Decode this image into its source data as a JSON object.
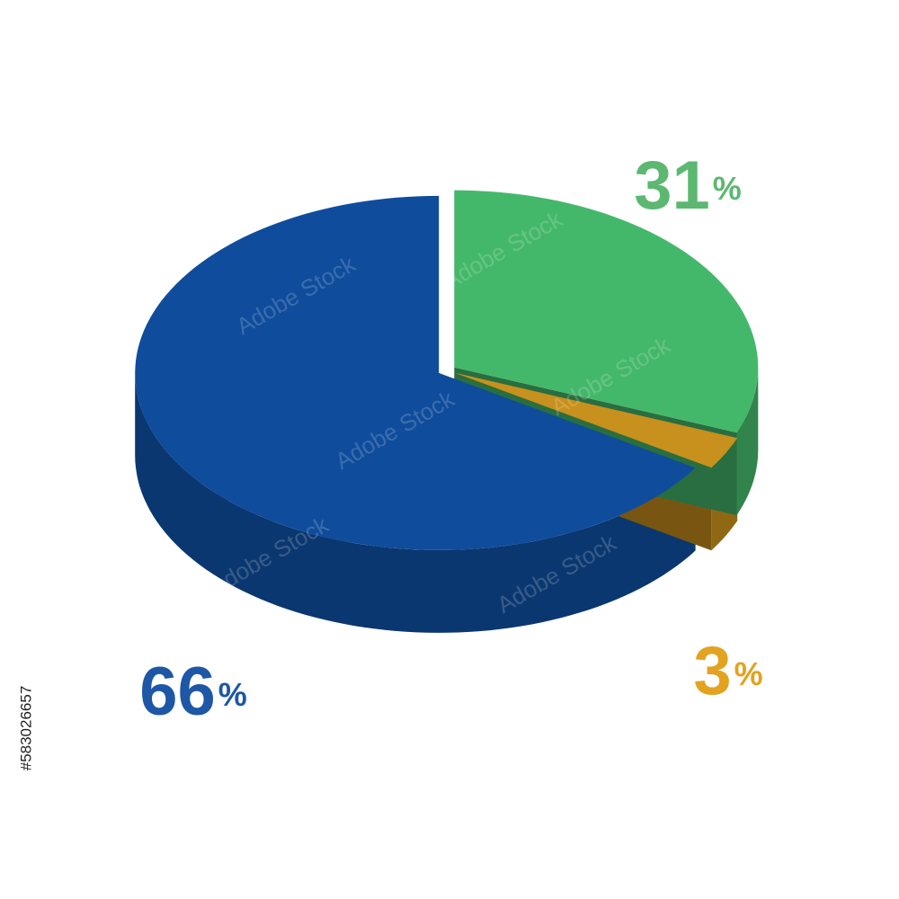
{
  "chart_data": {
    "type": "pie3d",
    "values": [
      66,
      3,
      31
    ],
    "colors": [
      "#0f4c9c",
      "#c8901c",
      "#44b86a"
    ],
    "label_colors": [
      "#1d57a6",
      "#e3a21f",
      "#5cb870"
    ],
    "unit": "%",
    "watermark": "Adobe Stock",
    "stock_id": "#583026657"
  }
}
